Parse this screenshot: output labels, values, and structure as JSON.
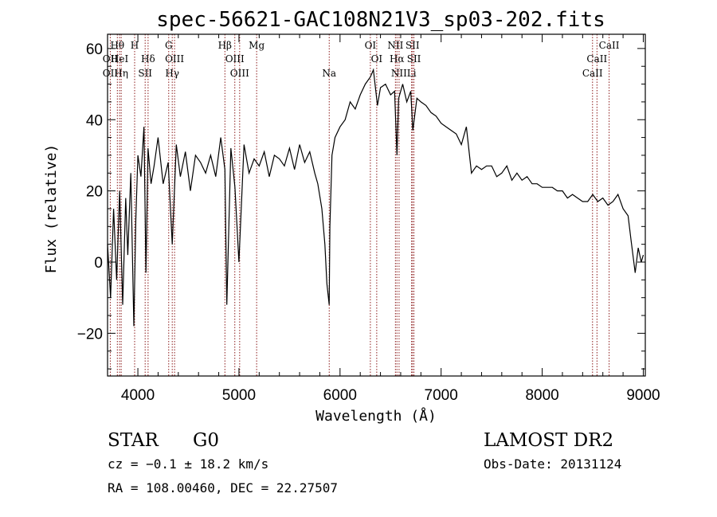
{
  "chart_data": {
    "type": "line",
    "title": "spec-56621-GAC108N21V3_sp03-202.fits",
    "xlabel": "Wavelength (Å)",
    "ylabel": "Flux (relative)",
    "xlim": [
      3700,
      9020
    ],
    "ylim": [
      -32,
      64
    ],
    "x_ticks": [
      4000,
      5000,
      6000,
      7000,
      8000,
      9000
    ],
    "y_ticks": [
      -20,
      0,
      20,
      40,
      60
    ],
    "x_tick_labels": [
      "4000",
      "5000",
      "6000",
      "7000",
      "8000",
      "9000"
    ],
    "y_tick_labels": [
      "−20",
      "0",
      "20",
      "40",
      "60"
    ],
    "series": [
      {
        "name": "flux",
        "x": [
          3700,
          3730,
          3760,
          3790,
          3820,
          3850,
          3880,
          3900,
          3930,
          3960,
          3980,
          4000,
          4030,
          4060,
          4080,
          4100,
          4130,
          4160,
          4200,
          4250,
          4300,
          4340,
          4380,
          4420,
          4470,
          4520,
          4570,
          4620,
          4670,
          4720,
          4770,
          4820,
          4861,
          4880,
          4920,
          4960,
          5000,
          5050,
          5100,
          5150,
          5200,
          5250,
          5300,
          5350,
          5400,
          5450,
          5500,
          5550,
          5600,
          5650,
          5700,
          5750,
          5780,
          5820,
          5850,
          5870,
          5893,
          5900,
          5920,
          5950,
          6000,
          6050,
          6100,
          6150,
          6200,
          6250,
          6300,
          6330,
          6370,
          6400,
          6450,
          6500,
          6540,
          6563,
          6580,
          6620,
          6660,
          6700,
          6720,
          6760,
          6800,
          6850,
          6900,
          6950,
          7000,
          7050,
          7100,
          7150,
          7200,
          7250,
          7300,
          7350,
          7400,
          7450,
          7500,
          7550,
          7600,
          7650,
          7700,
          7750,
          7800,
          7850,
          7900,
          7950,
          8000,
          8050,
          8100,
          8150,
          8200,
          8250,
          8300,
          8350,
          8400,
          8450,
          8500,
          8550,
          8600,
          8650,
          8700,
          8750,
          8800,
          8850,
          8880,
          8920,
          8950,
          8980,
          9000
        ],
        "y": [
          5,
          -10,
          15,
          -5,
          20,
          -12,
          18,
          2,
          25,
          -18,
          12,
          30,
          24,
          38,
          -3,
          32,
          22,
          27,
          35,
          22,
          28,
          5,
          33,
          24,
          31,
          20,
          30,
          28,
          25,
          30,
          24,
          35,
          26,
          -12,
          32,
          21,
          0,
          33,
          25,
          29,
          27,
          31,
          24,
          30,
          29,
          27,
          32,
          26,
          33,
          28,
          31,
          25,
          22,
          15,
          5,
          -6,
          -12,
          10,
          30,
          35,
          38,
          40,
          45,
          43,
          47,
          50,
          52,
          54,
          44,
          49,
          50,
          47,
          48,
          30,
          46,
          50,
          45,
          48,
          37,
          46,
          45,
          44,
          42,
          41,
          39,
          38,
          37,
          36,
          33,
          38,
          25,
          27,
          26,
          27,
          27,
          24,
          25,
          27,
          23,
          25,
          23,
          24,
          22,
          22,
          21,
          21,
          21,
          20,
          20,
          18,
          19,
          18,
          17,
          17,
          19,
          17,
          18,
          16,
          17,
          19,
          15,
          13,
          6,
          -3,
          4,
          0,
          2
        ]
      }
    ],
    "line_markers": [
      {
        "label": "Hθ",
        "x": 3797,
        "row": 1
      },
      {
        "label": "OII",
        "x": 3727,
        "row": 2
      },
      {
        "label": "OII",
        "x": 3727,
        "row": 3
      },
      {
        "label": "HeI",
        "x": 3819,
        "row": 2
      },
      {
        "label": "Hη",
        "x": 3835,
        "row": 3
      },
      {
        "label": "H",
        "x": 3968,
        "row": 1
      },
      {
        "label": "Hδ",
        "x": 4101,
        "row": 2
      },
      {
        "label": "SII",
        "x": 4072,
        "row": 3
      },
      {
        "label": "G",
        "x": 4305,
        "row": 1
      },
      {
        "label": "OIII",
        "x": 4363,
        "row": 2
      },
      {
        "label": "Hγ",
        "x": 4340,
        "row": 3
      },
      {
        "label": "Hβ",
        "x": 4861,
        "row": 1
      },
      {
        "label": "OIII",
        "x": 4959,
        "row": 2
      },
      {
        "label": "OIII",
        "x": 5007,
        "row": 3
      },
      {
        "label": "Mg",
        "x": 5175,
        "row": 1
      },
      {
        "label": "Na",
        "x": 5893,
        "row": 3
      },
      {
        "label": "OI",
        "x": 6300,
        "row": 1
      },
      {
        "label": "OI",
        "x": 6363,
        "row": 2
      },
      {
        "label": "NII",
        "x": 6548,
        "row": 1
      },
      {
        "label": "SII",
        "x": 6717,
        "row": 1
      },
      {
        "label": "Hα",
        "x": 6563,
        "row": 2
      },
      {
        "label": "SII",
        "x": 6731,
        "row": 2
      },
      {
        "label": "NII",
        "x": 6584,
        "row": 3
      },
      {
        "label": "Li",
        "x": 6708,
        "row": 3
      },
      {
        "label": "CaII",
        "x": 8662,
        "row": 1
      },
      {
        "label": "CaII",
        "x": 8542,
        "row": 2
      },
      {
        "label": "CaII",
        "x": 8498,
        "row": 3
      }
    ]
  },
  "info": {
    "class_label": "STAR",
    "subclass_label": "G0",
    "redshift_text": "cz = −0.1 ± 18.2 km/s",
    "coords_text": "RA = 108.00460, DEC =  22.27507",
    "survey_label": "LAMOST DR2",
    "obs_date_text": "Obs-Date: 20131124"
  },
  "colors": {
    "line": "#000000",
    "marker": "#8b1a1a",
    "axis": "#000000"
  }
}
